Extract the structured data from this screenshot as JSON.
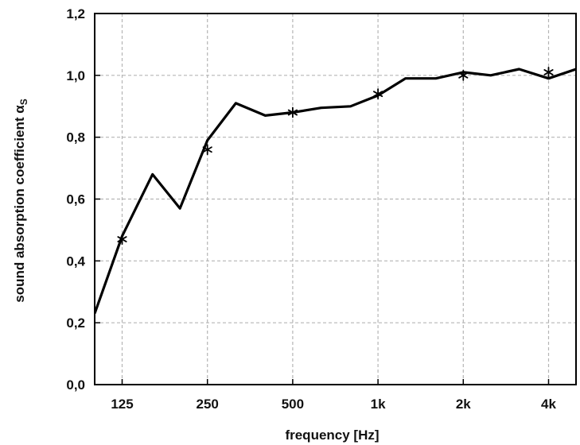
{
  "chart_data": {
    "type": "line",
    "xlabel": "frequency [Hz]",
    "ylabel": "sound absorption coefficient α",
    "ylabel_subscript": "S",
    "x_scale": "log",
    "xlim": [
      100,
      5000
    ],
    "ylim": [
      0,
      1.2
    ],
    "x_ticks": [
      {
        "value": 125,
        "label": "125"
      },
      {
        "value": 250,
        "label": "250"
      },
      {
        "value": 500,
        "label": "500"
      },
      {
        "value": 1000,
        "label": "1k"
      },
      {
        "value": 2000,
        "label": "2k"
      },
      {
        "value": 4000,
        "label": "4k"
      }
    ],
    "y_ticks": [
      {
        "value": 0.0,
        "label": "0,0"
      },
      {
        "value": 0.2,
        "label": "0,2"
      },
      {
        "value": 0.4,
        "label": "0,4"
      },
      {
        "value": 0.6,
        "label": "0,6"
      },
      {
        "value": 0.8,
        "label": "0,8"
      },
      {
        "value": 1.0,
        "label": "1,0"
      },
      {
        "value": 1.2,
        "label": "1,2"
      }
    ],
    "grid": true,
    "grid_style": "dashed",
    "series": [
      {
        "style": "line",
        "color": "#000000",
        "x": [
          100,
          125,
          160,
          200,
          250,
          315,
          400,
          500,
          630,
          800,
          1000,
          1250,
          1600,
          2000,
          2500,
          3150,
          4000,
          5000
        ],
        "y": [
          0.23,
          0.48,
          0.68,
          0.57,
          0.79,
          0.91,
          0.87,
          0.88,
          0.895,
          0.9,
          0.935,
          0.99,
          0.99,
          1.01,
          1.0,
          1.02,
          0.99,
          1.02
        ]
      },
      {
        "style": "markers",
        "marker": "*",
        "color": "#000000",
        "x": [
          125,
          250,
          500,
          1000,
          2000,
          4000
        ],
        "y": [
          0.47,
          0.76,
          0.88,
          0.94,
          1.0,
          1.01
        ]
      }
    ]
  }
}
